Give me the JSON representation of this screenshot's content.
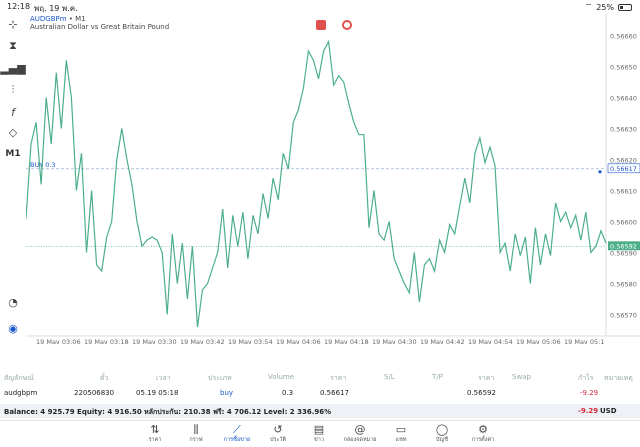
{
  "status": {
    "time": "12:18",
    "date": "พฤ. 19 พ.ค.",
    "battery": "25%"
  },
  "chart": {
    "symbol": "AUDGBPm",
    "timeframe": "M1",
    "description": "Australian Dollar vs Great Britain Pound",
    "order_label": "BUY 0.3",
    "entry_price_label": "0.56617",
    "bid_price_label": "0.56592",
    "line_color": "#4caf8a",
    "accent": "#1a56c9"
  },
  "chart_data": {
    "type": "line",
    "title": "AUDGBPm, M1",
    "y_ticks": [
      "0.56660",
      "0.56650",
      "0.56640",
      "0.56630",
      "0.56620",
      "0.56610",
      "0.56600",
      "0.56590",
      "0.56580",
      "0.56570"
    ],
    "x_ticks": [
      "19 May 03:06",
      "19 May 03:18",
      "19 May 03:30",
      "19 May 03:42",
      "19 May 03:54",
      "19 May 04:06",
      "19 May 04:18",
      "19 May 04:30",
      "19 May 04:42",
      "19 May 04:54",
      "19 May 05:06",
      "19 May 05:1"
    ],
    "ylim": [
      0.56565,
      0.56665
    ],
    "xlim": [
      0,
      120
    ],
    "values": [
      0.56601,
      0.56625,
      0.56632,
      0.56612,
      0.5664,
      0.56625,
      0.56648,
      0.5663,
      0.56652,
      0.5664,
      0.5661,
      0.56622,
      0.5659,
      0.5661,
      0.56586,
      0.56584,
      0.56595,
      0.566,
      0.5662,
      0.5663,
      0.5662,
      0.56612,
      0.566,
      0.56592,
      0.56594,
      0.56595,
      0.56594,
      0.5659,
      0.5657,
      0.56596,
      0.5658,
      0.56593,
      0.56575,
      0.56592,
      0.56566,
      0.56578,
      0.5658,
      0.56585,
      0.5659,
      0.56604,
      0.56585,
      0.56602,
      0.56592,
      0.56603,
      0.56588,
      0.56602,
      0.56596,
      0.56609,
      0.56601,
      0.56614,
      0.56607,
      0.56622,
      0.56617,
      0.56632,
      0.56636,
      0.56643,
      0.56655,
      0.56652,
      0.56646,
      0.56655,
      0.56658,
      0.56644,
      0.56647,
      0.56645,
      0.56638,
      0.56632,
      0.56628,
      0.56628,
      0.56598,
      0.5661,
      0.56596,
      0.56594,
      0.566,
      0.56588,
      0.56584,
      0.5658,
      0.56577,
      0.5659,
      0.56574,
      0.56586,
      0.56588,
      0.56584,
      0.56594,
      0.5659,
      0.56599,
      0.56596,
      0.56605,
      0.56614,
      0.56606,
      0.56622,
      0.56627,
      0.56619,
      0.56624,
      0.56618,
      0.5659,
      0.56593,
      0.56584,
      0.56596,
      0.56589,
      0.56595,
      0.5658,
      0.56598,
      0.56586,
      0.56596,
      0.56589,
      0.56606,
      0.566,
      0.56603,
      0.56598,
      0.56602,
      0.56594,
      0.56603,
      0.5659,
      0.56592,
      0.56597,
      0.56593
    ]
  },
  "columns": [
    "สัญลักษณ์",
    "ตั๋ว",
    "เวลา",
    "ประเภท",
    "Volume",
    "ราคา",
    "S/L",
    "T/P",
    "ราคา",
    "Swap",
    "กำไร",
    "หมายเหตุ"
  ],
  "position": {
    "symbol": "audgbpm",
    "ticket": "220506830",
    "time": "05.19 05:18",
    "type": "buy",
    "volume": "0.3",
    "open_price": "0.56617",
    "current_price": "0.56592",
    "profit": "-9.29"
  },
  "balance": {
    "text": "Balance: 4 925.79 Equity: 4 916.50 หลักประกัน: 210.38 ฟรี: 4 706.12 Level: 2 336.96%",
    "profit": "-9.29",
    "currency": "USD"
  },
  "tabs": [
    {
      "label": "ราคา",
      "icon": "quotes-icon"
    },
    {
      "label": "กราฟ",
      "icon": "chart-candles-icon"
    },
    {
      "label": "การซื้อขาย",
      "icon": "trade-icon"
    },
    {
      "label": "ประวัติ",
      "icon": "history-icon"
    },
    {
      "label": "ข่าว",
      "icon": "news-icon"
    },
    {
      "label": "กล่องจดหมาย",
      "icon": "mailbox-icon"
    },
    {
      "label": "แชท",
      "icon": "chat-icon"
    },
    {
      "label": "บัญชี",
      "icon": "account-icon"
    },
    {
      "label": "การตั้งค่า",
      "icon": "settings-icon"
    }
  ]
}
